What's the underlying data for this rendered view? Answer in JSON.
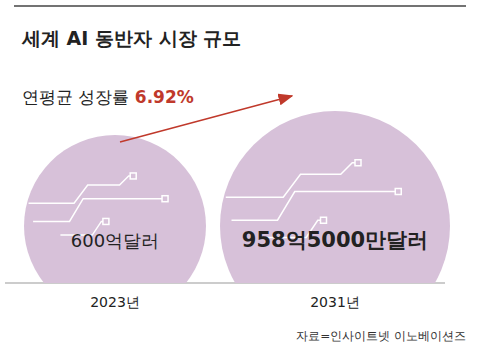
{
  "chart_data": {
    "type": "bubble",
    "title": "세계 AI 동반자 시장 규모",
    "annotation": {
      "text": "연평균 성장률",
      "value": 6.92,
      "value_label": "6.92%"
    },
    "categories": [
      "2023년",
      "2031년"
    ],
    "values": [
      600,
      958.5
    ],
    "value_labels": [
      "600억달러",
      "958억5000만달러"
    ],
    "color": "#d7c1d9",
    "source": "자료=인사이트넷 이노베이션즈"
  }
}
